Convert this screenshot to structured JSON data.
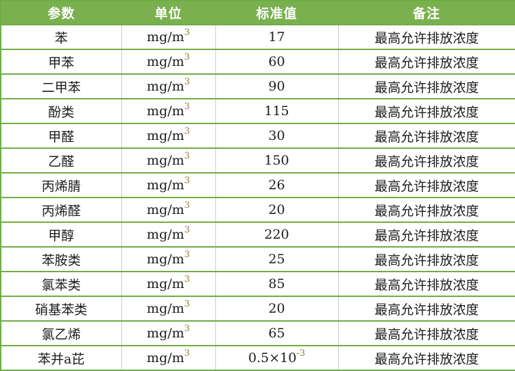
{
  "table": {
    "headers": [
      {
        "label": "参数"
      },
      {
        "label": "单位"
      },
      {
        "label": "标准值"
      },
      {
        "label": "备注"
      }
    ],
    "unit_base": "mg/m",
    "unit_sup": "3",
    "rows": [
      {
        "param": "苯",
        "value": "17",
        "value_sup": "",
        "note": "最高允许排放浓度"
      },
      {
        "param": "甲苯",
        "value": "60",
        "value_sup": "",
        "note": "最高允许排放浓度"
      },
      {
        "param": "二甲苯",
        "value": "90",
        "value_sup": "",
        "note": "最高允许排放浓度"
      },
      {
        "param": "酚类",
        "value": "115",
        "value_sup": "",
        "note": "最高允许排放浓度"
      },
      {
        "param": "甲醛",
        "value": "30",
        "value_sup": "",
        "note": "最高允许排放浓度"
      },
      {
        "param": "乙醛",
        "value": "150",
        "value_sup": "",
        "note": "最高允许排放浓度"
      },
      {
        "param": "丙烯腈",
        "value": "26",
        "value_sup": "",
        "note": "最高允许排放浓度"
      },
      {
        "param": "丙烯醛",
        "value": "20",
        "value_sup": "",
        "note": "最高允许排放浓度"
      },
      {
        "param": "甲醇",
        "value": "220",
        "value_sup": "",
        "note": "最高允许排放浓度"
      },
      {
        "param": "苯胺类",
        "value": "25",
        "value_sup": "",
        "note": "最高允许排放浓度"
      },
      {
        "param": "氯苯类",
        "value": "85",
        "value_sup": "",
        "note": "最高允许排放浓度"
      },
      {
        "param": "硝基苯类",
        "value": "20",
        "value_sup": "",
        "note": "最高允许排放浓度"
      },
      {
        "param": "氯乙烯",
        "value": "65",
        "value_sup": "",
        "note": "最高允许排放浓度"
      },
      {
        "param": "苯并a芘",
        "value": "0.5×10",
        "value_sup": "-3",
        "note": "最高允许排放浓度"
      }
    ]
  },
  "colors": {
    "header_bg": "#7BB04F",
    "green_border": "#6FAC46",
    "gray_border": "#CBCBCB",
    "sup_color": "#957A3E",
    "header_text": "#FFFFFF",
    "body_text": "#1C1C1C"
  }
}
